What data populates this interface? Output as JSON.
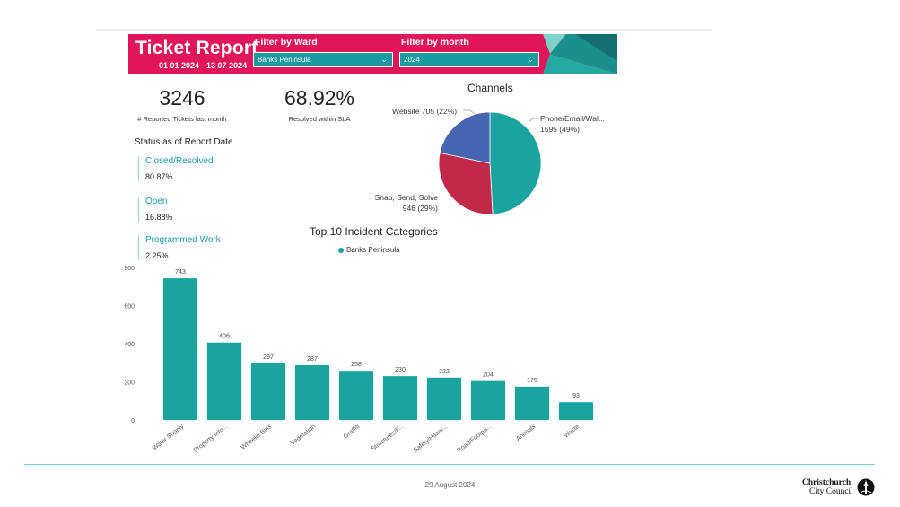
{
  "header": {
    "title": "Ticket Report",
    "date_range": "01 01 2024 - 13 07 2024",
    "filter_ward": {
      "label": "Filter by Ward",
      "value": "Banks Peninsula"
    },
    "filter_month": {
      "label": "Filter by month",
      "value": "2024"
    },
    "colors": {
      "banner": "#e1155a",
      "select": "#1a9ba0"
    }
  },
  "kpis": [
    {
      "value": "3246",
      "label": "# Reported Tickets last month"
    },
    {
      "value": "68.92%",
      "label": "Resolved within SLA"
    }
  ],
  "status": {
    "title": "Status as of Report Date",
    "items": [
      {
        "name": "Closed/Resolved",
        "value": "80.87%"
      },
      {
        "name": "Open",
        "value": "16.88%"
      },
      {
        "name": "Programmed Work",
        "value": "2.25%"
      }
    ]
  },
  "channels": {
    "title": "Channels",
    "labels": {
      "website": "Website 705 (22%)",
      "phone_line1": "Phone/Email/Wal...",
      "phone_line2": "1595 (49%)",
      "snap_line1": "Snap, Send, Solve",
      "snap_line2": "946 (29%)"
    }
  },
  "chart_data": [
    {
      "type": "pie",
      "title": "Channels",
      "slices": [
        {
          "name": "Phone/Email/Wal...",
          "value": 1595,
          "percent": 49,
          "color": "#1aa39f"
        },
        {
          "name": "Snap, Send, Solve",
          "value": 946,
          "percent": 29,
          "color": "#c0294a"
        },
        {
          "name": "Website",
          "value": 705,
          "percent": 22,
          "color": "#4764b0"
        }
      ]
    },
    {
      "type": "bar",
      "title": "Top 10 Incident Categories",
      "legend": [
        "Banks Peninsula"
      ],
      "legend_position": "top",
      "color": "#1aa39f",
      "categories": [
        "Water Supply",
        "Property Info...",
        "Wheelie Bins",
        "Vegetation",
        "Graffiti",
        "Structures/F...",
        "Safety/Hazar...",
        "Road/Footpa...",
        "Animals",
        "Waste"
      ],
      "values": [
        743,
        406,
        297,
        287,
        258,
        230,
        222,
        204,
        175,
        93
      ],
      "yticks": [
        "0",
        "200",
        "400",
        "600",
        "800"
      ],
      "ylim": [
        0,
        800
      ],
      "grid": false
    }
  ],
  "footer": {
    "date": "29 August 2024",
    "brand_line1": "Christchurch",
    "brand_line2": "City Council"
  }
}
